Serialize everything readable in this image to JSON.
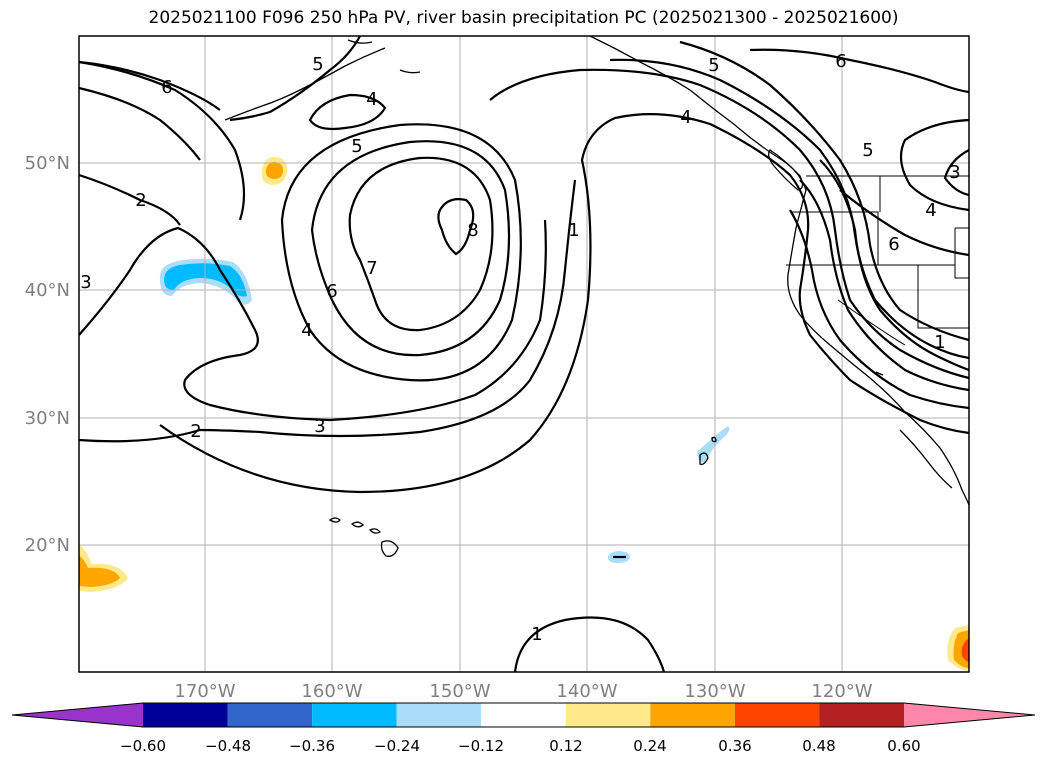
{
  "title": "2025021100 F096 250 hPa PV, river basin precipitation PC (2025021300 - 2025021600)",
  "lat_labels": [
    "50°N",
    "40°N",
    "30°N",
    "20°N"
  ],
  "lon_labels": [
    "170°W",
    "160°W",
    "150°W",
    "140°W",
    "130°W",
    "120°W"
  ],
  "contour_labels": [
    "6",
    "5",
    "4",
    "5",
    "2",
    "3",
    "6",
    "7",
    "8",
    "1",
    "4",
    "2",
    "3",
    "5",
    "4",
    "1",
    "6",
    "5",
    "6",
    "4",
    "3",
    "1"
  ],
  "colorbar": {
    "ticks": [
      "−0.60",
      "−0.48",
      "−0.36",
      "−0.24",
      "−0.12",
      "0.12",
      "0.24",
      "0.36",
      "0.48",
      "0.60"
    ],
    "colors": [
      "#9933cc",
      "#000099",
      "#3366cc",
      "#00bbff",
      "#aaddf8",
      "#ffffff",
      "#ffe98a",
      "#ffa500",
      "#ff4400",
      "#b22222",
      "#ff88aa"
    ],
    "extend": "both"
  },
  "colors": {
    "grid": "#b0b0b0",
    "tick_label": "#808080",
    "contour": "#000000"
  }
}
